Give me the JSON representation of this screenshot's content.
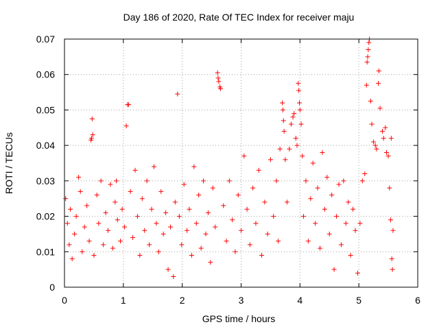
{
  "chart_data": {
    "type": "scatter",
    "title": "Day 186 of 2020, Rate Of TEC Index for receiver maju",
    "xlabel": "GPS time / hours",
    "ylabel": "ROTI / TECUs",
    "xlim": [
      0,
      6
    ],
    "ylim": [
      0,
      0.07
    ],
    "xticks": [
      "0",
      "1",
      "2",
      "3",
      "4",
      "5",
      "6"
    ],
    "yticks": [
      "0",
      "0.01",
      "0.02",
      "0.03",
      "0.04",
      "0.05",
      "0.06",
      "0.07"
    ],
    "grid": true,
    "marker": "+",
    "color": "#ff0000",
    "series": [
      {
        "name": "ROTI",
        "points": [
          [
            0.02,
            0.025
          ],
          [
            0.05,
            0.018
          ],
          [
            0.08,
            0.012
          ],
          [
            0.1,
            0.022
          ],
          [
            0.13,
            0.008
          ],
          [
            0.17,
            0.015
          ],
          [
            0.2,
            0.02
          ],
          [
            0.24,
            0.031
          ],
          [
            0.27,
            0.027
          ],
          [
            0.3,
            0.01
          ],
          [
            0.34,
            0.017
          ],
          [
            0.38,
            0.023
          ],
          [
            0.42,
            0.013
          ],
          [
            0.45,
            0.0415
          ],
          [
            0.46,
            0.042
          ],
          [
            0.47,
            0.0475
          ],
          [
            0.48,
            0.043
          ],
          [
            0.5,
            0.009
          ],
          [
            0.55,
            0.026
          ],
          [
            0.58,
            0.018
          ],
          [
            0.62,
            0.03
          ],
          [
            0.66,
            0.012
          ],
          [
            0.7,
            0.021
          ],
          [
            0.74,
            0.016
          ],
          [
            0.78,
            0.029
          ],
          [
            0.82,
            0.011
          ],
          [
            0.86,
            0.024
          ],
          [
            0.88,
            0.03
          ],
          [
            0.9,
            0.019
          ],
          [
            0.95,
            0.013
          ],
          [
            0.98,
            0.022
          ],
          [
            1.02,
            0.017
          ],
          [
            1.05,
            0.0455
          ],
          [
            1.07,
            0.0515
          ],
          [
            1.09,
            0.0515
          ],
          [
            1.12,
            0.027
          ],
          [
            1.16,
            0.014
          ],
          [
            1.2,
            0.033
          ],
          [
            1.24,
            0.02
          ],
          [
            1.28,
            0.009
          ],
          [
            1.32,
            0.025
          ],
          [
            1.36,
            0.016
          ],
          [
            1.4,
            0.03
          ],
          [
            1.44,
            0.012
          ],
          [
            1.48,
            0.022
          ],
          [
            1.52,
            0.034
          ],
          [
            1.56,
            0.018
          ],
          [
            1.6,
            0.01
          ],
          [
            1.64,
            0.027
          ],
          [
            1.68,
            0.015
          ],
          [
            1.72,
            0.021
          ],
          [
            1.76,
            0.005
          ],
          [
            1.8,
            0.017
          ],
          [
            1.85,
            0.003
          ],
          [
            1.88,
            0.024
          ],
          [
            1.92,
            0.0545
          ],
          [
            1.95,
            0.02
          ],
          [
            1.99,
            0.012
          ],
          [
            2.03,
            0.029
          ],
          [
            2.08,
            0.016
          ],
          [
            2.12,
            0.022
          ],
          [
            2.16,
            0.009
          ],
          [
            2.2,
            0.034
          ],
          [
            2.24,
            0.018
          ],
          [
            2.28,
            0.026
          ],
          [
            2.32,
            0.011
          ],
          [
            2.36,
            0.03
          ],
          [
            2.4,
            0.015
          ],
          [
            2.44,
            0.021
          ],
          [
            2.48,
            0.007
          ],
          [
            2.52,
            0.028
          ],
          [
            2.56,
            0.017
          ],
          [
            2.6,
            0.0605
          ],
          [
            2.61,
            0.059
          ],
          [
            2.62,
            0.058
          ],
          [
            2.64,
            0.0565
          ],
          [
            2.65,
            0.056
          ],
          [
            2.7,
            0.023
          ],
          [
            2.75,
            0.013
          ],
          [
            2.8,
            0.03
          ],
          [
            2.85,
            0.019
          ],
          [
            2.9,
            0.01
          ],
          [
            2.95,
            0.026
          ],
          [
            3.0,
            0.016
          ],
          [
            3.05,
            0.037
          ],
          [
            3.1,
            0.022
          ],
          [
            3.15,
            0.012
          ],
          [
            3.2,
            0.028
          ],
          [
            3.25,
            0.018
          ],
          [
            3.3,
            0.033
          ],
          [
            3.35,
            0.009
          ],
          [
            3.4,
            0.024
          ],
          [
            3.45,
            0.015
          ],
          [
            3.5,
            0.036
          ],
          [
            3.55,
            0.02
          ],
          [
            3.6,
            0.03
          ],
          [
            3.63,
            0.013
          ],
          [
            3.66,
            0.039
          ],
          [
            3.7,
            0.052
          ],
          [
            3.71,
            0.05
          ],
          [
            3.72,
            0.047
          ],
          [
            3.73,
            0.044
          ],
          [
            3.75,
            0.036
          ],
          [
            3.78,
            0.024
          ],
          [
            3.82,
            0.039
          ],
          [
            3.85,
            0.046
          ],
          [
            3.88,
            0.048
          ],
          [
            3.9,
            0.049
          ],
          [
            3.93,
            0.042
          ],
          [
            3.95,
            0.04
          ],
          [
            3.97,
            0.0575
          ],
          [
            3.98,
            0.0555
          ],
          [
            3.99,
            0.052
          ],
          [
            4.0,
            0.05
          ],
          [
            4.02,
            0.046
          ],
          [
            4.04,
            0.037
          ],
          [
            4.06,
            0.02
          ],
          [
            4.1,
            0.03
          ],
          [
            4.14,
            0.013
          ],
          [
            4.18,
            0.025
          ],
          [
            4.22,
            0.035
          ],
          [
            4.26,
            0.018
          ],
          [
            4.3,
            0.028
          ],
          [
            4.34,
            0.011
          ],
          [
            4.38,
            0.038
          ],
          [
            4.42,
            0.022
          ],
          [
            4.46,
            0.031
          ],
          [
            4.5,
            0.015
          ],
          [
            4.54,
            0.026
          ],
          [
            4.58,
            0.005
          ],
          [
            4.62,
            0.02
          ],
          [
            4.66,
            0.029
          ],
          [
            4.7,
            0.012
          ],
          [
            4.74,
            0.03
          ],
          [
            4.78,
            0.018
          ],
          [
            4.82,
            0.024
          ],
          [
            4.86,
            0.009
          ],
          [
            4.9,
            0.022
          ],
          [
            4.94,
            0.016
          ],
          [
            4.98,
            0.004
          ],
          [
            5.02,
            0.018
          ],
          [
            5.06,
            0.03
          ],
          [
            5.1,
            0.032
          ],
          [
            5.13,
            0.057
          ],
          [
            5.14,
            0.0635
          ],
          [
            5.15,
            0.065
          ],
          [
            5.16,
            0.067
          ],
          [
            5.17,
            0.069
          ],
          [
            5.18,
            0.07
          ],
          [
            5.2,
            0.0525
          ],
          [
            5.22,
            0.046
          ],
          [
            5.25,
            0.041
          ],
          [
            5.28,
            0.04
          ],
          [
            5.3,
            0.039
          ],
          [
            5.33,
            0.0575
          ],
          [
            5.34,
            0.061
          ],
          [
            5.36,
            0.0505
          ],
          [
            5.4,
            0.044
          ],
          [
            5.42,
            0.042
          ],
          [
            5.45,
            0.045
          ],
          [
            5.47,
            0.038
          ],
          [
            5.5,
            0.037
          ],
          [
            5.52,
            0.028
          ],
          [
            5.54,
            0.019
          ],
          [
            5.55,
            0.042
          ],
          [
            5.56,
            0.008
          ],
          [
            5.57,
            0.005
          ],
          [
            5.58,
            0.016
          ]
        ]
      }
    ]
  }
}
